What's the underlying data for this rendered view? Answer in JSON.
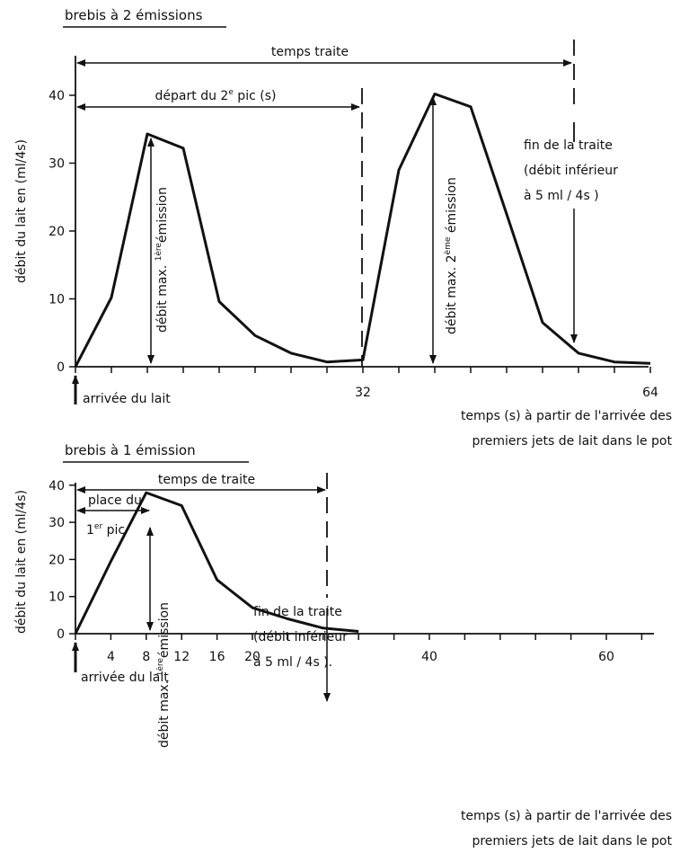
{
  "chart_data": [
    {
      "type": "line",
      "title": "brebis à 2 émissions",
      "ylabel": "débit du lait en (ml/4s)",
      "xlabel_line1": "temps (s) à partir de l'arrivée des",
      "xlabel_line2": "premiers jets de lait dans le pot",
      "xlim": [
        0,
        64
      ],
      "ylim": [
        0,
        46
      ],
      "x_ticks": [
        0,
        4,
        8,
        12,
        16,
        20,
        24,
        28,
        32,
        36,
        40,
        44,
        48,
        52,
        56,
        60,
        64
      ],
      "x_tick_labels": [
        {
          "x": 32,
          "label": "32"
        },
        {
          "x": 64,
          "label": "64"
        }
      ],
      "y_ticks": [
        {
          "v": 0,
          "label": "0"
        },
        {
          "v": 10,
          "label": "10"
        },
        {
          "v": 20,
          "label": "20"
        },
        {
          "v": 30,
          "label": "30"
        },
        {
          "v": 40,
          "label": "40"
        }
      ],
      "series": [
        {
          "x": [
            0,
            4,
            8,
            12,
            16,
            20,
            24,
            28,
            32,
            36,
            40,
            44,
            48,
            52,
            56,
            60,
            64
          ],
          "y": [
            0,
            10.2,
            34.3,
            32.2,
            9.6,
            4.6,
            2.0,
            0.7,
            1.0,
            29.0,
            40.2,
            38.3,
            22.5,
            6.5,
            2.0,
            0.7,
            0.5
          ]
        }
      ],
      "annotations": {
        "temps_traite": {
          "text": "temps  traite",
          "x_start": 0,
          "x_end": 56
        },
        "depart_2e_pic": {
          "text_before": "départ  du  2",
          "superscript": "e",
          "text_after": "  pic  (s)",
          "x_start": 0,
          "x_end": 32
        },
        "debit_max_1": {
          "text_before": "débit  max. ",
          "superscript": "1ère",
          "text_after": "émission",
          "x": 8
        },
        "debit_max_2": {
          "text_before": "débit  max.  2",
          "superscript": "ème",
          "text_after": " émission",
          "x": 40
        },
        "arrivee": "arrivée  du  lait",
        "fin_traite": [
          "fin de la traite",
          "(débit inférieur",
          "à  5 ml / 4s )"
        ]
      }
    },
    {
      "type": "line",
      "title": "brebis  à  1  émission",
      "ylabel": "débit du lait en (ml/4s)",
      "xlabel_line1": "temps  (s) à  partir  de  l'arrivée  des",
      "xlabel_line2": "premiers  jets  de  lait  dans  le  pot",
      "xlim": [
        0,
        66
      ],
      "ylim": [
        0,
        46
      ],
      "x_ticks": [
        0,
        4,
        8,
        12,
        16,
        20,
        24,
        28,
        32,
        36,
        40,
        44,
        48,
        52,
        56,
        60,
        64
      ],
      "x_tick_labels": [
        {
          "x": 4,
          "label": "4"
        },
        {
          "x": 8,
          "label": "8"
        },
        {
          "x": 12,
          "label": "12"
        },
        {
          "x": 16,
          "label": "16"
        },
        {
          "x": 20,
          "label": "20"
        },
        {
          "x": 40,
          "label": "40"
        },
        {
          "x": 60,
          "label": "60"
        }
      ],
      "y_ticks": [
        {
          "v": 0,
          "label": "0"
        },
        {
          "v": 10,
          "label": "10"
        },
        {
          "v": 20,
          "label": "20"
        },
        {
          "v": 30,
          "label": "30"
        },
        {
          "v": 40,
          "label": "40"
        }
      ],
      "series": [
        {
          "x": [
            0,
            4,
            8,
            12,
            16,
            20,
            24,
            28,
            32
          ],
          "y": [
            0,
            19.5,
            38.0,
            34.5,
            14.5,
            7.0,
            4.0,
            1.5,
            0.6
          ]
        }
      ],
      "annotations": {
        "temps_traite": {
          "text": "temps  de  traite",
          "x_start": 0,
          "x_end": 28
        },
        "place_1er_pic": {
          "line1": "place du",
          "line2_before": "1",
          "superscript": "er",
          "line2_after": " pic",
          "x_start": 0,
          "x_end": 8
        },
        "debit_max_1": {
          "text_before": "débit  max. ",
          "superscript": "1ère",
          "text_after": "émission",
          "x": 8
        },
        "arrivee": "arrivée  du  lait",
        "fin_traite": [
          "fin  de  la  traite",
          "(débit  inférieur",
          "à  5 ml  / 4s )."
        ]
      }
    }
  ]
}
